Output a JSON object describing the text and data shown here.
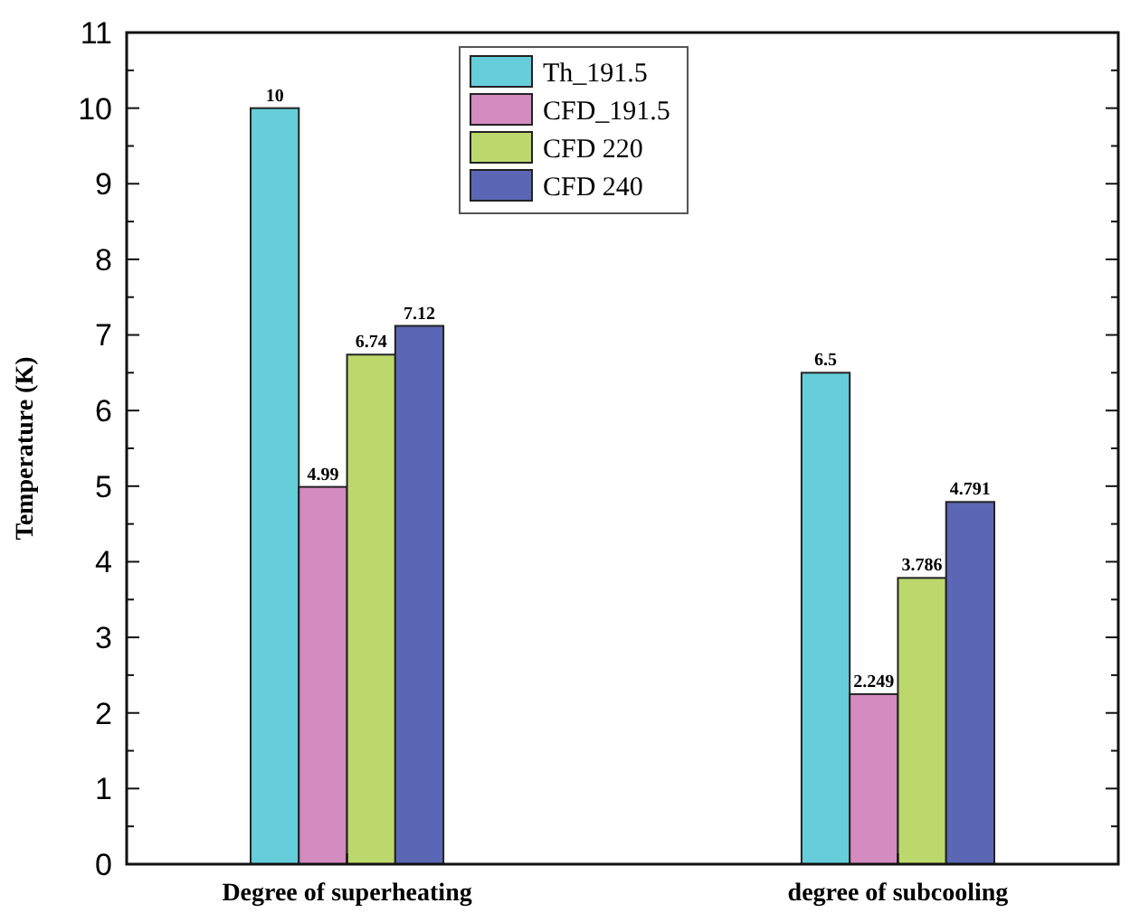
{
  "chart_data": {
    "type": "bar",
    "ylabel": "Temperature (K)",
    "categories": [
      "Degree of superheating",
      "degree of subcooling"
    ],
    "series": [
      {
        "name": "Th_191.5",
        "color": "#66cedb",
        "values": [
          10,
          6.5
        ]
      },
      {
        "name": "CFD_191.5",
        "color": "#d48bc0",
        "values": [
          4.99,
          2.249
        ]
      },
      {
        "name": "CFD 220",
        "color": "#bcd86c",
        "values": [
          6.74,
          3.786
        ]
      },
      {
        "name": "CFD 240",
        "color": "#5b67b5",
        "values": [
          7.12,
          4.791
        ]
      }
    ],
    "ylim": [
      0,
      11
    ],
    "yticks": [
      0,
      1,
      2,
      3,
      4,
      5,
      6,
      7,
      8,
      9,
      10,
      11
    ],
    "data_labels": true,
    "legend": "top",
    "grid": false
  }
}
